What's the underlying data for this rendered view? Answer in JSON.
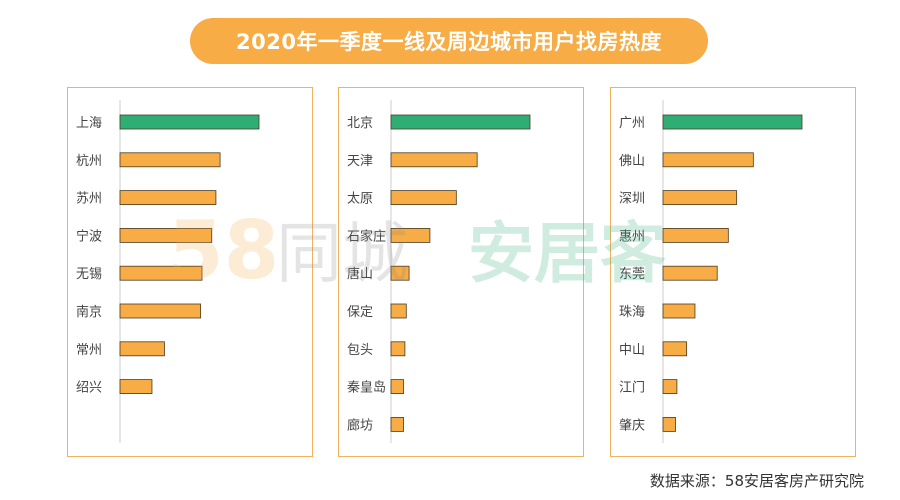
{
  "title": "2020年一季度一线及周边城市用户找房热度",
  "source": "数据来源：58安居客房产研究院",
  "watermark": {
    "number": "58",
    "brand_a": "同城",
    "brand_b": "安居客"
  },
  "colors": {
    "highlight": "#2eae74",
    "bar": "#f7ac45",
    "bar_stroke": "#4a3a20",
    "frame": "#f2b25c",
    "axis": "#cccccc",
    "label": "#444444"
  },
  "chart_data": [
    {
      "type": "bar",
      "orientation": "horizontal",
      "categories": [
        "上海",
        "杭州",
        "苏州",
        "宁波",
        "无锡",
        "南京",
        "常州",
        "绍兴"
      ],
      "values": [
        100,
        72,
        69,
        66,
        59,
        58,
        32,
        23
      ],
      "highlight_index": 0,
      "xlim": [
        0,
        100
      ]
    },
    {
      "type": "bar",
      "orientation": "horizontal",
      "categories": [
        "北京",
        "天津",
        "太原",
        "石家庄",
        "唐山",
        "保定",
        "包头",
        "秦皇岛",
        "廊坊"
      ],
      "values": [
        100,
        62,
        47,
        28,
        13,
        11,
        10,
        9,
        9
      ],
      "highlight_index": 0,
      "xlim": [
        0,
        100
      ]
    },
    {
      "type": "bar",
      "orientation": "horizontal",
      "categories": [
        "广州",
        "佛山",
        "深圳",
        "惠州",
        "东莞",
        "珠海",
        "中山",
        "江门",
        "肇庆"
      ],
      "values": [
        100,
        65,
        53,
        47,
        39,
        23,
        17,
        10,
        9
      ],
      "highlight_index": 0,
      "xlim": [
        0,
        100
      ]
    }
  ]
}
